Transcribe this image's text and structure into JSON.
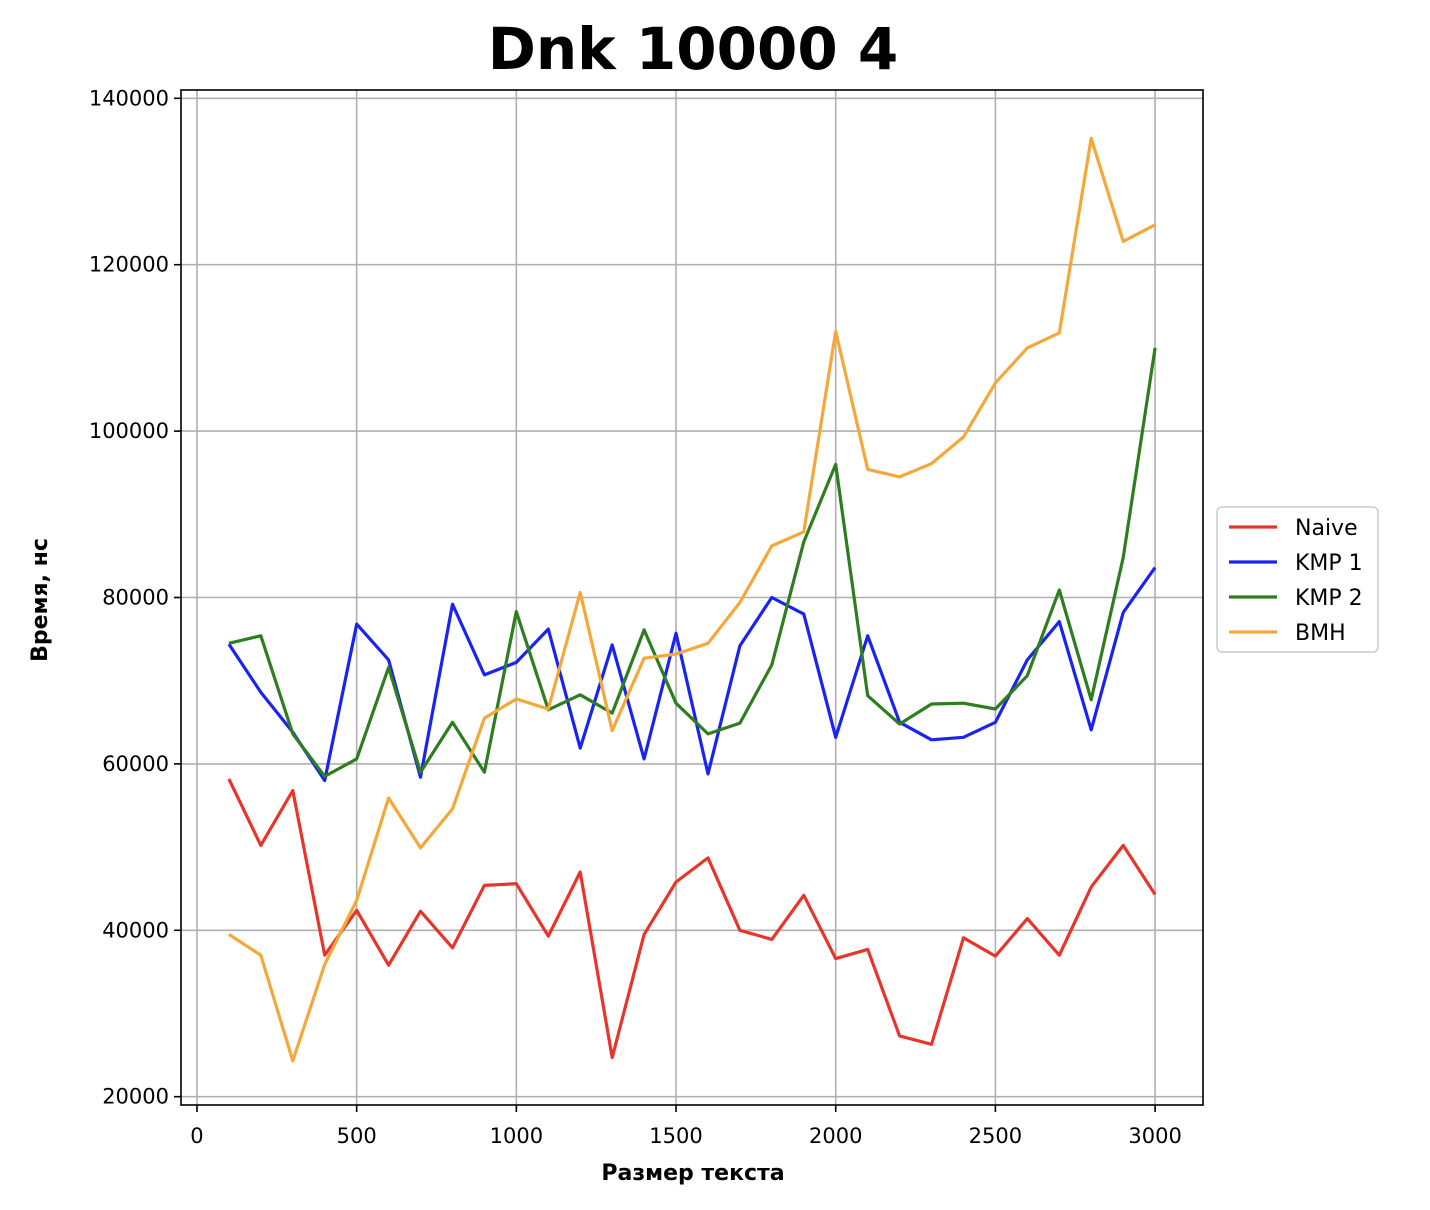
{
  "chart_data": {
    "type": "line",
    "title": "Dnk 10000 4",
    "xlabel": "Размер текста",
    "ylabel": "Время, нс",
    "xlim": [
      -50,
      3150
    ],
    "ylim": [
      19000,
      141000
    ],
    "xticks": [
      0,
      500,
      1000,
      1500,
      2000,
      2500,
      3000
    ],
    "yticks": [
      20000,
      40000,
      60000,
      80000,
      100000,
      120000,
      140000
    ],
    "grid": true,
    "legend_position": "center-right-outside",
    "x": [
      100,
      200,
      300,
      400,
      500,
      600,
      700,
      800,
      900,
      1000,
      1100,
      1200,
      1300,
      1400,
      1500,
      1600,
      1700,
      1800,
      1900,
      2000,
      2100,
      2200,
      2300,
      2400,
      2500,
      2600,
      2700,
      2800,
      2900,
      3000
    ],
    "series": [
      {
        "name": "Naive",
        "color": "#e8352b",
        "values": [
          58200,
          50200,
          56800,
          37000,
          42400,
          35800,
          42300,
          37900,
          45400,
          45600,
          39300,
          47000,
          24700,
          39500,
          45800,
          48700,
          40000,
          38900,
          44200,
          36600,
          37700,
          27300,
          26300,
          39100,
          36900,
          41400,
          37000,
          45200,
          50200,
          44300
        ]
      },
      {
        "name": "KMP 1",
        "color": "#1a24f0",
        "values": [
          74400,
          68600,
          63800,
          58000,
          76800,
          72500,
          58400,
          79200,
          70700,
          72200,
          76200,
          61900,
          74300,
          60600,
          75700,
          58800,
          74200,
          80000,
          78000,
          63200,
          75400,
          65000,
          62900,
          63200,
          65000,
          72500,
          77100,
          64100,
          78200,
          83600
        ]
      },
      {
        "name": "KMP 2",
        "color": "#2e7d1e",
        "values": [
          74500,
          75400,
          63600,
          58500,
          60600,
          71600,
          59000,
          65000,
          59000,
          78300,
          66500,
          68300,
          66100,
          76100,
          67300,
          63600,
          64900,
          71900,
          86700,
          96000,
          68200,
          64800,
          67200,
          67300,
          66600,
          70600,
          80900,
          67700,
          84800,
          110000
        ]
      },
      {
        "name": "BMH",
        "color": "#f4a83a",
        "values": [
          39500,
          37000,
          24300,
          35900,
          43600,
          55900,
          49900,
          54600,
          65500,
          67800,
          66600,
          80600,
          64000,
          72700,
          73200,
          74500,
          79400,
          86200,
          87900,
          112000,
          95400,
          94500,
          96100,
          99300,
          105800,
          110000,
          111800,
          135200,
          122800,
          124800
        ]
      }
    ]
  }
}
